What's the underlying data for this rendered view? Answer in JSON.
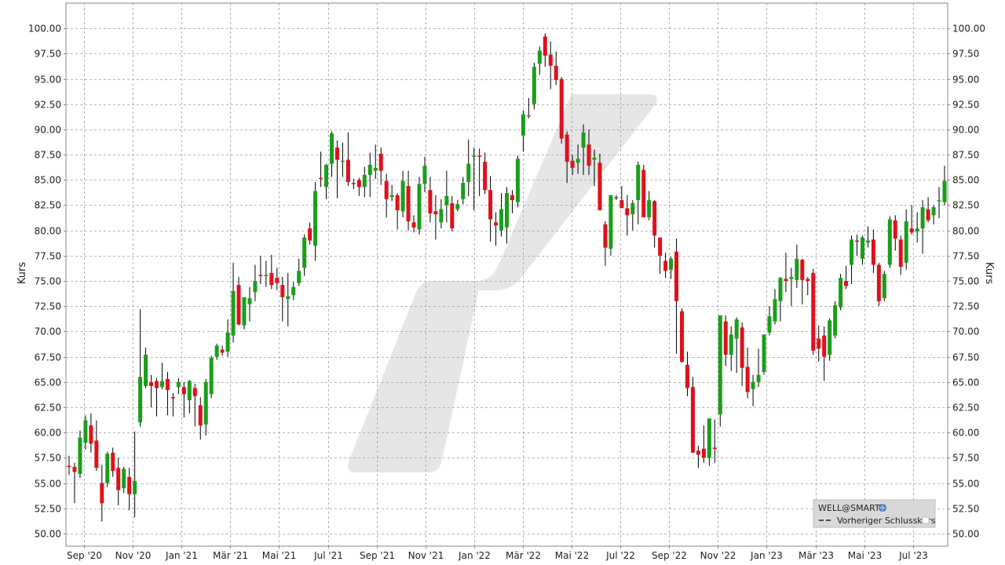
{
  "chart_data": {
    "type": "candlestick",
    "symbol": "WELL@SMART",
    "ylabel_left": "Kurs",
    "ylabel_right": "Kurs",
    "ylim": [
      48.75,
      102.5
    ],
    "y_ticks": [
      50,
      52.5,
      55,
      57.5,
      60,
      62.5,
      65,
      67.5,
      70,
      72.5,
      75,
      77.5,
      80,
      82.5,
      85,
      87.5,
      90,
      92.5,
      95,
      97.5,
      100
    ],
    "y_tick_labels": [
      "50.00",
      "52.50",
      "55.00",
      "57.50",
      "60.00",
      "62.50",
      "65.00",
      "67.50",
      "70.00",
      "72.50",
      "75.00",
      "77.50",
      "80.00",
      "82.50",
      "85.00",
      "87.50",
      "90.00",
      "92.50",
      "95.00",
      "97.50",
      "100.00"
    ],
    "x_ticks": [
      "Sep '20",
      "Nov '20",
      "Jan '21",
      "Mär '21",
      "Mai '21",
      "Jul '21",
      "Sep '21",
      "Nov '21",
      "Jan '22",
      "Mär '22",
      "Mai '22",
      "Jul '22",
      "Sep '22",
      "Nov '22",
      "Jan '23",
      "Mär '23",
      "Mai '23",
      "Jul '23"
    ],
    "grid": true,
    "legend_position": "bottom-right",
    "legend": {
      "series_name": "WELL@SMART",
      "prev_close_label": "Vorheriger Schlusskurs"
    },
    "colors": {
      "up": "#1a9e1a",
      "down": "#e0101a",
      "wick": "#000000",
      "grid": "#a0a0a0"
    },
    "candles": [
      {
        "o": 56.7,
        "h": 57.7,
        "l": 55.8,
        "c": 56.6
      },
      {
        "o": 56.6,
        "h": 57.0,
        "l": 53.0,
        "c": 56.1
      },
      {
        "o": 55.9,
        "h": 60.2,
        "l": 55.5,
        "c": 59.5
      },
      {
        "o": 59.0,
        "h": 61.7,
        "l": 58.3,
        "c": 61.2
      },
      {
        "o": 60.7,
        "h": 61.9,
        "l": 58.0,
        "c": 58.9
      },
      {
        "o": 59.2,
        "h": 61.2,
        "l": 56.2,
        "c": 56.5
      },
      {
        "o": 55.0,
        "h": 56.8,
        "l": 51.2,
        "c": 53.0
      },
      {
        "o": 55.0,
        "h": 58.1,
        "l": 54.6,
        "c": 57.9
      },
      {
        "o": 58.0,
        "h": 58.5,
        "l": 55.6,
        "c": 56.2
      },
      {
        "o": 56.5,
        "h": 57.5,
        "l": 52.8,
        "c": 54.3
      },
      {
        "o": 54.5,
        "h": 56.6,
        "l": 54.0,
        "c": 56.4
      },
      {
        "o": 55.6,
        "h": 56.5,
        "l": 52.3,
        "c": 53.9
      },
      {
        "o": 53.9,
        "h": 60.1,
        "l": 51.6,
        "c": 55.2
      },
      {
        "o": 61.0,
        "h": 72.2,
        "l": 60.6,
        "c": 65.5
      },
      {
        "o": 64.6,
        "h": 68.4,
        "l": 64.4,
        "c": 67.7
      },
      {
        "o": 65.0,
        "h": 65.7,
        "l": 62.5,
        "c": 64.6
      },
      {
        "o": 65.1,
        "h": 65.4,
        "l": 61.6,
        "c": 64.4
      },
      {
        "o": 64.5,
        "h": 66.9,
        "l": 64.3,
        "c": 65.1
      },
      {
        "o": 65.3,
        "h": 66.0,
        "l": 61.7,
        "c": 64.2
      },
      {
        "o": 63.5,
        "h": 63.9,
        "l": 61.6,
        "c": 63.4
      },
      {
        "o": 64.5,
        "h": 65.4,
        "l": 63.8,
        "c": 65.0
      },
      {
        "o": 64.5,
        "h": 65.0,
        "l": 61.5,
        "c": 63.8
      },
      {
        "o": 63.2,
        "h": 65.2,
        "l": 61.9,
        "c": 65.1
      },
      {
        "o": 64.4,
        "h": 64.8,
        "l": 60.6,
        "c": 63.6
      },
      {
        "o": 62.7,
        "h": 63.5,
        "l": 59.3,
        "c": 60.7
      },
      {
        "o": 60.8,
        "h": 65.3,
        "l": 59.7,
        "c": 65.0
      },
      {
        "o": 63.8,
        "h": 67.6,
        "l": 63.4,
        "c": 67.4
      },
      {
        "o": 67.5,
        "h": 68.8,
        "l": 67.2,
        "c": 68.6
      },
      {
        "o": 68.2,
        "h": 68.6,
        "l": 67.6,
        "c": 67.9
      },
      {
        "o": 68.0,
        "h": 71.2,
        "l": 67.5,
        "c": 69.9
      },
      {
        "o": 69.6,
        "h": 76.8,
        "l": 68.9,
        "c": 74.0
      },
      {
        "o": 74.6,
        "h": 75.4,
        "l": 70.6,
        "c": 70.7
      },
      {
        "o": 70.6,
        "h": 73.3,
        "l": 70.2,
        "c": 73.4
      },
      {
        "o": 72.7,
        "h": 74.4,
        "l": 71.0,
        "c": 73.3
      },
      {
        "o": 73.9,
        "h": 76.6,
        "l": 73.0,
        "c": 75.0
      },
      {
        "o": 75.6,
        "h": 77.5,
        "l": 74.7,
        "c": 75.5
      },
      {
        "o": 75.5,
        "h": 77.0,
        "l": 74.4,
        "c": 75.6
      },
      {
        "o": 75.8,
        "h": 77.6,
        "l": 74.2,
        "c": 74.6
      },
      {
        "o": 75.3,
        "h": 76.3,
        "l": 74.1,
        "c": 74.8
      },
      {
        "o": 74.6,
        "h": 75.4,
        "l": 71.0,
        "c": 73.4
      },
      {
        "o": 73.2,
        "h": 75.8,
        "l": 70.5,
        "c": 73.5
      },
      {
        "o": 73.6,
        "h": 74.9,
        "l": 73.1,
        "c": 74.4
      },
      {
        "o": 74.8,
        "h": 77.2,
        "l": 74.5,
        "c": 76.0
      },
      {
        "o": 76.3,
        "h": 79.6,
        "l": 75.5,
        "c": 79.3
      },
      {
        "o": 80.2,
        "h": 80.8,
        "l": 78.6,
        "c": 79.0
      },
      {
        "o": 78.5,
        "h": 84.8,
        "l": 77.0,
        "c": 83.9
      },
      {
        "o": 85.2,
        "h": 87.8,
        "l": 84.3,
        "c": 85.1
      },
      {
        "o": 84.3,
        "h": 86.6,
        "l": 83.1,
        "c": 86.5
      },
      {
        "o": 86.6,
        "h": 89.8,
        "l": 85.3,
        "c": 89.6
      },
      {
        "o": 88.2,
        "h": 88.9,
        "l": 83.2,
        "c": 87.0
      },
      {
        "o": 86.9,
        "h": 88.7,
        "l": 85.3,
        "c": 86.9
      },
      {
        "o": 87.0,
        "h": 89.7,
        "l": 84.4,
        "c": 84.8
      },
      {
        "o": 84.7,
        "h": 85.1,
        "l": 84.1,
        "c": 84.6
      },
      {
        "o": 85.0,
        "h": 85.2,
        "l": 83.4,
        "c": 84.3
      },
      {
        "o": 84.3,
        "h": 86.3,
        "l": 83.3,
        "c": 85.5
      },
      {
        "o": 85.5,
        "h": 87.7,
        "l": 83.3,
        "c": 86.5
      },
      {
        "o": 85.9,
        "h": 88.5,
        "l": 85.1,
        "c": 86.2
      },
      {
        "o": 87.6,
        "h": 88.2,
        "l": 84.5,
        "c": 85.9
      },
      {
        "o": 84.9,
        "h": 85.6,
        "l": 81.3,
        "c": 83.1
      },
      {
        "o": 83.3,
        "h": 84.5,
        "l": 82.9,
        "c": 83.5
      },
      {
        "o": 83.5,
        "h": 83.7,
        "l": 80.1,
        "c": 82.0
      },
      {
        "o": 81.9,
        "h": 85.9,
        "l": 81.3,
        "c": 84.9
      },
      {
        "o": 84.4,
        "h": 85.9,
        "l": 80.0,
        "c": 80.9
      },
      {
        "o": 80.8,
        "h": 81.5,
        "l": 79.8,
        "c": 80.3
      },
      {
        "o": 80.1,
        "h": 85.3,
        "l": 79.6,
        "c": 84.6
      },
      {
        "o": 84.6,
        "h": 87.3,
        "l": 83.8,
        "c": 86.4
      },
      {
        "o": 84.0,
        "h": 85.3,
        "l": 80.8,
        "c": 81.7
      },
      {
        "o": 81.9,
        "h": 83.5,
        "l": 79.1,
        "c": 81.6
      },
      {
        "o": 80.8,
        "h": 83.1,
        "l": 80.2,
        "c": 82.1
      },
      {
        "o": 82.5,
        "h": 85.9,
        "l": 80.8,
        "c": 83.4
      },
      {
        "o": 82.7,
        "h": 83.4,
        "l": 79.9,
        "c": 80.2
      },
      {
        "o": 82.1,
        "h": 83.0,
        "l": 81.9,
        "c": 82.6
      },
      {
        "o": 83.1,
        "h": 85.3,
        "l": 82.6,
        "c": 84.7
      },
      {
        "o": 84.8,
        "h": 89.0,
        "l": 83.4,
        "c": 86.6
      },
      {
        "o": 87.3,
        "h": 88.2,
        "l": 82.0,
        "c": 87.4
      },
      {
        "o": 87.4,
        "h": 88.1,
        "l": 83.4,
        "c": 87.3
      },
      {
        "o": 86.8,
        "h": 87.7,
        "l": 83.6,
        "c": 84.0
      },
      {
        "o": 84.0,
        "h": 85.4,
        "l": 78.9,
        "c": 81.1
      },
      {
        "o": 80.8,
        "h": 81.8,
        "l": 78.5,
        "c": 80.5
      },
      {
        "o": 80.0,
        "h": 83.7,
        "l": 79.4,
        "c": 82.1
      },
      {
        "o": 80.3,
        "h": 84.3,
        "l": 78.7,
        "c": 83.7
      },
      {
        "o": 83.5,
        "h": 84.0,
        "l": 81.7,
        "c": 83.0
      },
      {
        "o": 82.8,
        "h": 87.4,
        "l": 82.3,
        "c": 87.1
      },
      {
        "o": 89.4,
        "h": 91.9,
        "l": 87.8,
        "c": 91.5
      },
      {
        "o": 91.4,
        "h": 93.1,
        "l": 91.1,
        "c": 91.4
      },
      {
        "o": 92.5,
        "h": 96.6,
        "l": 92.0,
        "c": 96.2
      },
      {
        "o": 96.5,
        "h": 98.2,
        "l": 95.4,
        "c": 97.8
      },
      {
        "o": 99.2,
        "h": 99.5,
        "l": 96.2,
        "c": 97.3
      },
      {
        "o": 97.4,
        "h": 98.7,
        "l": 94.0,
        "c": 96.3
      },
      {
        "o": 96.3,
        "h": 97.7,
        "l": 94.4,
        "c": 94.9
      },
      {
        "o": 95.0,
        "h": 95.2,
        "l": 88.6,
        "c": 89.1
      },
      {
        "o": 89.5,
        "h": 89.8,
        "l": 84.7,
        "c": 86.8
      },
      {
        "o": 86.9,
        "h": 87.5,
        "l": 85.5,
        "c": 86.2
      },
      {
        "o": 86.7,
        "h": 88.5,
        "l": 85.6,
        "c": 87.1
      },
      {
        "o": 88.2,
        "h": 90.5,
        "l": 85.5,
        "c": 89.7
      },
      {
        "o": 88.5,
        "h": 90.0,
        "l": 85.5,
        "c": 86.4
      },
      {
        "o": 87.0,
        "h": 88.0,
        "l": 84.4,
        "c": 87.2
      },
      {
        "o": 86.7,
        "h": 87.6,
        "l": 82.0,
        "c": 82.0
      },
      {
        "o": 80.6,
        "h": 80.9,
        "l": 76.5,
        "c": 78.3
      },
      {
        "o": 78.2,
        "h": 83.5,
        "l": 77.5,
        "c": 83.5
      },
      {
        "o": 83.3,
        "h": 83.5,
        "l": 83.0,
        "c": 83.2
      },
      {
        "o": 83.0,
        "h": 84.4,
        "l": 82.6,
        "c": 82.2
      },
      {
        "o": 82.2,
        "h": 83.5,
        "l": 79.5,
        "c": 81.5
      },
      {
        "o": 81.6,
        "h": 83.0,
        "l": 80.0,
        "c": 82.7
      },
      {
        "o": 83.0,
        "h": 86.8,
        "l": 80.6,
        "c": 86.5
      },
      {
        "o": 86.0,
        "h": 86.5,
        "l": 81.8,
        "c": 81.3
      },
      {
        "o": 81.3,
        "h": 83.9,
        "l": 81.0,
        "c": 83.0
      },
      {
        "o": 82.9,
        "h": 83.0,
        "l": 78.3,
        "c": 79.5
      },
      {
        "o": 79.3,
        "h": 79.3,
        "l": 75.7,
        "c": 77.5
      },
      {
        "o": 77.0,
        "h": 77.8,
        "l": 75.3,
        "c": 76.0
      },
      {
        "o": 76.1,
        "h": 77.4,
        "l": 75.2,
        "c": 77.2
      },
      {
        "o": 77.9,
        "h": 79.2,
        "l": 67.8,
        "c": 73.0
      },
      {
        "o": 72.0,
        "h": 72.3,
        "l": 66.9,
        "c": 67.0
      },
      {
        "o": 66.7,
        "h": 68.0,
        "l": 63.6,
        "c": 64.4
      },
      {
        "o": 64.5,
        "h": 65.5,
        "l": 58.0,
        "c": 58.0
      },
      {
        "o": 58.2,
        "h": 58.7,
        "l": 56.5,
        "c": 57.8
      },
      {
        "o": 58.4,
        "h": 60.7,
        "l": 57.0,
        "c": 57.5
      },
      {
        "o": 57.5,
        "h": 61.2,
        "l": 56.7,
        "c": 61.4
      },
      {
        "o": 58.5,
        "h": 61.3,
        "l": 57.0,
        "c": 58.4
      },
      {
        "o": 61.8,
        "h": 71.2,
        "l": 60.6,
        "c": 71.6
      },
      {
        "o": 71.0,
        "h": 71.6,
        "l": 66.6,
        "c": 67.7
      },
      {
        "o": 67.7,
        "h": 70.5,
        "l": 66.1,
        "c": 69.7
      },
      {
        "o": 69.3,
        "h": 71.4,
        "l": 65.9,
        "c": 71.2
      },
      {
        "o": 70.4,
        "h": 70.9,
        "l": 64.6,
        "c": 66.4
      },
      {
        "o": 66.5,
        "h": 68.4,
        "l": 63.4,
        "c": 64.0
      },
      {
        "o": 64.3,
        "h": 65.7,
        "l": 62.6,
        "c": 65.0
      },
      {
        "o": 65.0,
        "h": 68.3,
        "l": 64.5,
        "c": 65.7
      },
      {
        "o": 66.0,
        "h": 69.7,
        "l": 65.7,
        "c": 69.7
      },
      {
        "o": 69.9,
        "h": 72.5,
        "l": 69.6,
        "c": 71.5
      },
      {
        "o": 71.0,
        "h": 74.2,
        "l": 70.7,
        "c": 73.2
      },
      {
        "o": 73.0,
        "h": 75.4,
        "l": 71.0,
        "c": 75.3
      },
      {
        "o": 75.2,
        "h": 77.8,
        "l": 73.9,
        "c": 75.0
      },
      {
        "o": 75.2,
        "h": 76.3,
        "l": 72.5,
        "c": 75.4
      },
      {
        "o": 75.1,
        "h": 78.6,
        "l": 74.3,
        "c": 77.2
      },
      {
        "o": 77.1,
        "h": 77.2,
        "l": 72.7,
        "c": 75.1
      },
      {
        "o": 75.2,
        "h": 75.4,
        "l": 73.6,
        "c": 75.0
      },
      {
        "o": 75.8,
        "h": 76.2,
        "l": 67.7,
        "c": 68.1
      },
      {
        "o": 69.3,
        "h": 70.6,
        "l": 67.0,
        "c": 68.3
      },
      {
        "o": 69.6,
        "h": 70.5,
        "l": 65.1,
        "c": 67.5
      },
      {
        "o": 67.7,
        "h": 71.3,
        "l": 67.1,
        "c": 71.1
      },
      {
        "o": 69.6,
        "h": 73.0,
        "l": 69.3,
        "c": 72.6
      },
      {
        "o": 72.4,
        "h": 75.7,
        "l": 72.1,
        "c": 75.3
      },
      {
        "o": 75.0,
        "h": 76.5,
        "l": 74.2,
        "c": 74.5
      },
      {
        "o": 76.6,
        "h": 79.5,
        "l": 74.7,
        "c": 79.1
      },
      {
        "o": 79.0,
        "h": 79.6,
        "l": 77.5,
        "c": 78.9
      },
      {
        "o": 77.2,
        "h": 79.5,
        "l": 76.6,
        "c": 79.3
      },
      {
        "o": 78.8,
        "h": 80.4,
        "l": 78.3,
        "c": 79.0
      },
      {
        "o": 79.1,
        "h": 80.1,
        "l": 75.8,
        "c": 76.6
      },
      {
        "o": 76.6,
        "h": 76.8,
        "l": 72.5,
        "c": 73.0
      },
      {
        "o": 73.3,
        "h": 76.0,
        "l": 73.0,
        "c": 75.7
      },
      {
        "o": 76.6,
        "h": 81.4,
        "l": 76.3,
        "c": 81.1
      },
      {
        "o": 81.0,
        "h": 81.5,
        "l": 78.0,
        "c": 79.2
      },
      {
        "o": 79.1,
        "h": 79.5,
        "l": 75.6,
        "c": 76.4
      },
      {
        "o": 76.8,
        "h": 82.1,
        "l": 76.1,
        "c": 80.9
      },
      {
        "o": 80.2,
        "h": 82.5,
        "l": 79.6,
        "c": 79.8
      },
      {
        "o": 79.9,
        "h": 81.8,
        "l": 78.8,
        "c": 80.2
      },
      {
        "o": 80.2,
        "h": 83.0,
        "l": 77.7,
        "c": 82.3
      },
      {
        "o": 82.1,
        "h": 83.3,
        "l": 80.8,
        "c": 81.0
      },
      {
        "o": 81.5,
        "h": 82.5,
        "l": 80.6,
        "c": 82.3
      },
      {
        "o": 83.0,
        "h": 84.3,
        "l": 81.2,
        "c": 83.0
      },
      {
        "o": 82.8,
        "h": 86.4,
        "l": 82.5,
        "c": 84.9
      }
    ]
  }
}
